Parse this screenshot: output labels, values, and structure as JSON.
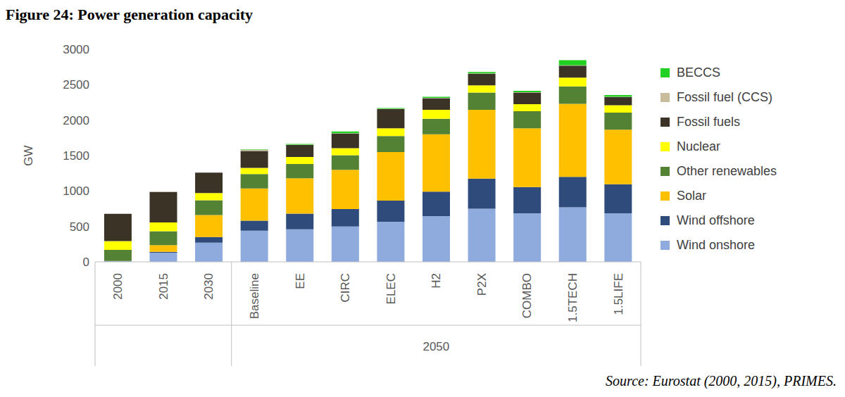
{
  "chart_data": {
    "type": "bar",
    "title": "Figure 24: Power generation capacity",
    "source": "Source: Eurostat (2000, 2015), PRIMES.",
    "y_label": "GW",
    "categories": [
      "2000",
      "2015",
      "2030",
      "Baseline",
      "EE",
      "CIRC",
      "ELEC",
      "H2",
      "P2X",
      "COMBO",
      "1.5TECH",
      "1.5LIFE"
    ],
    "category_groups": [
      {
        "label": "2050",
        "from": 3,
        "to": 11
      }
    ],
    "stacked": true,
    "grid": false,
    "legend": "right",
    "ylim": [
      0,
      3000
    ],
    "yticks": [
      0,
      500,
      1000,
      1500,
      2000,
      2500,
      3000
    ],
    "series": [
      {
        "name": "Wind onshore",
        "color": "#8faadc",
        "values": [
          13,
          130,
          270,
          440,
          460,
          500,
          565,
          645,
          750,
          685,
          770,
          685
        ]
      },
      {
        "name": "Wind offshore",
        "color": "#2f4b7c",
        "values": [
          0,
          12,
          80,
          140,
          220,
          245,
          300,
          345,
          425,
          370,
          430,
          410
        ]
      },
      {
        "name": "Solar",
        "color": "#ffc000",
        "values": [
          0,
          95,
          310,
          455,
          500,
          555,
          685,
          810,
          970,
          830,
          1030,
          770
        ]
      },
      {
        "name": "Other renewables",
        "color": "#548235",
        "values": [
          155,
          195,
          210,
          205,
          200,
          205,
          225,
          220,
          245,
          240,
          245,
          240
        ]
      },
      {
        "name": "Nuclear",
        "color": "#ffff00",
        "values": [
          125,
          125,
          100,
          85,
          100,
          100,
          110,
          125,
          100,
          100,
          125,
          105
        ]
      },
      {
        "name": "Fossil fuels",
        "color": "#3b3426",
        "values": [
          385,
          430,
          290,
          240,
          170,
          205,
          270,
          165,
          165,
          165,
          170,
          115
        ]
      },
      {
        "name": "Fossil fuel (CCS)",
        "color": "#c9bc9c",
        "values": [
          0,
          5,
          0,
          20,
          5,
          5,
          5,
          5,
          5,
          5,
          5,
          5
        ]
      },
      {
        "name": "BECCS",
        "color": "#22d022",
        "values": [
          0,
          0,
          0,
          5,
          10,
          25,
          10,
          15,
          20,
          20,
          70,
          25
        ]
      }
    ]
  }
}
